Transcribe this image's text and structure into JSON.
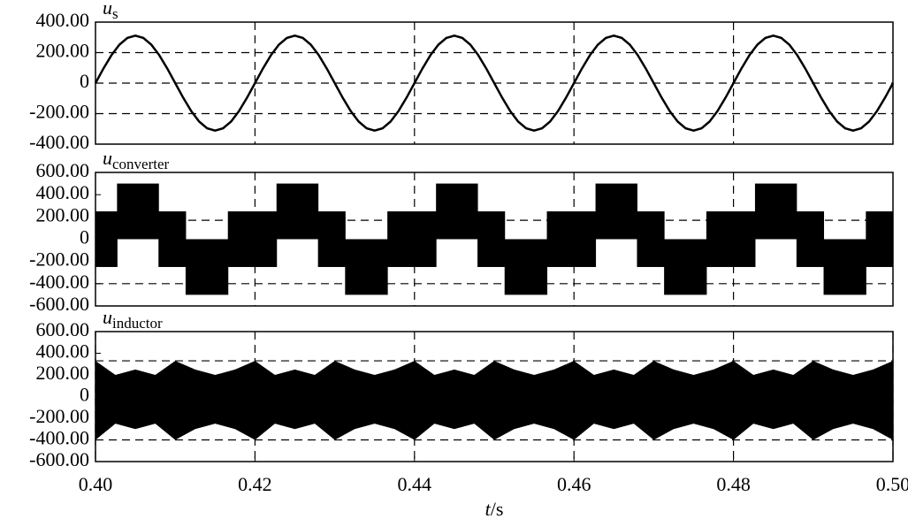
{
  "chart_data": [
    {
      "type": "line",
      "ylabel": "u",
      "ylabel_sub": "s",
      "color": "#000000",
      "x": [
        0.4,
        0.401,
        0.402,
        0.403,
        0.404,
        0.405,
        0.406,
        0.407,
        0.408,
        0.409,
        0.41,
        0.411,
        0.412,
        0.413,
        0.414,
        0.415,
        0.416,
        0.417,
        0.418,
        0.419,
        0.42,
        0.421,
        0.422,
        0.423,
        0.424,
        0.425,
        0.426,
        0.427,
        0.428,
        0.429,
        0.43,
        0.431,
        0.432,
        0.433,
        0.434,
        0.435,
        0.436,
        0.437,
        0.438,
        0.439,
        0.44,
        0.441,
        0.442,
        0.443,
        0.444,
        0.445,
        0.446,
        0.447,
        0.448,
        0.449,
        0.45,
        0.451,
        0.452,
        0.453,
        0.454,
        0.455,
        0.456,
        0.457,
        0.458,
        0.459,
        0.46,
        0.461,
        0.462,
        0.463,
        0.464,
        0.465,
        0.466,
        0.467,
        0.468,
        0.469,
        0.47,
        0.471,
        0.472,
        0.473,
        0.474,
        0.475,
        0.476,
        0.477,
        0.478,
        0.479,
        0.48,
        0.481,
        0.482,
        0.483,
        0.484,
        0.485,
        0.486,
        0.487,
        0.488,
        0.489,
        0.49,
        0.491,
        0.492,
        0.493,
        0.494,
        0.495,
        0.496,
        0.497,
        0.498,
        0.499,
        0.5
      ],
      "values": [
        0,
        96,
        183,
        252,
        296,
        311,
        296,
        252,
        183,
        96,
        0,
        -96,
        -183,
        -252,
        -296,
        -311,
        -296,
        -252,
        -183,
        -96,
        0,
        96,
        183,
        252,
        296,
        311,
        296,
        252,
        183,
        96,
        0,
        -96,
        -183,
        -252,
        -296,
        -311,
        -296,
        -252,
        -183,
        -96,
        0,
        96,
        183,
        252,
        296,
        311,
        296,
        252,
        183,
        96,
        0,
        -96,
        -183,
        -252,
        -296,
        -311,
        -296,
        -252,
        -183,
        -96,
        0,
        96,
        183,
        252,
        296,
        311,
        296,
        252,
        183,
        96,
        0,
        -96,
        -183,
        -252,
        -296,
        -311,
        -296,
        -252,
        -183,
        -96,
        0,
        96,
        183,
        252,
        296,
        311,
        296,
        252,
        183,
        96,
        0,
        -96,
        -183,
        -252,
        -296,
        -311,
        -296,
        -252,
        -183,
        -96,
        0
      ],
      "xlim": [
        0.4,
        0.5
      ],
      "xticks": [
        0.42,
        0.44,
        0.46,
        0.48
      ],
      "ylim": [
        -400,
        400
      ],
      "yticks": [
        {
          "value": 400,
          "label": "400.00"
        },
        {
          "value": 200,
          "label": "200.00"
        },
        0,
        {
          "value": -200,
          "label": "-200.00"
        },
        {
          "value": -400,
          "label": "-400.00"
        }
      ],
      "reference_lines": [
        200,
        0,
        -200
      ]
    },
    {
      "type": "step_band",
      "ylabel": "u",
      "ylabel_sub": "converter",
      "color": "#000000",
      "edges": [
        0.4,
        0.4027,
        0.4079,
        0.4113,
        0.4166,
        0.42,
        0.4227,
        0.4279,
        0.4313,
        0.4366,
        0.44,
        0.4427,
        0.4479,
        0.4513,
        0.4566,
        0.46,
        0.4627,
        0.4679,
        0.4713,
        0.4766,
        0.48,
        0.4827,
        0.4879,
        0.4913,
        0.4966,
        0.5
      ],
      "upper": [
        250,
        500,
        250,
        0,
        250,
        250,
        500,
        250,
        0,
        250,
        250,
        500,
        250,
        0,
        250,
        250,
        500,
        250,
        0,
        250,
        250,
        500,
        250,
        0,
        250
      ],
      "lower": [
        -250,
        0,
        -250,
        -500,
        -250,
        -250,
        0,
        -250,
        -500,
        -250,
        -250,
        0,
        -250,
        -500,
        -250,
        -250,
        0,
        -250,
        -500,
        -250,
        -250,
        0,
        -250,
        -500,
        -250
      ],
      "xlim": [
        0.4,
        0.5
      ],
      "xticks": [
        0.42,
        0.44,
        0.46,
        0.48
      ],
      "ylim": [
        -600,
        600
      ],
      "yticks": [
        {
          "value": 600,
          "label": "600.00"
        },
        {
          "value": 400,
          "label": "400.00"
        },
        {
          "value": 200,
          "label": "200.00"
        },
        0,
        {
          "value": -200,
          "label": "-200.00"
        },
        {
          "value": -400,
          "label": "-400.00"
        },
        {
          "value": -600,
          "label": "-600.00"
        }
      ],
      "reference_lines": [
        170,
        -400
      ]
    },
    {
      "type": "band",
      "ylabel": "u",
      "ylabel_sub": "inductor",
      "color": "#000000",
      "x": [
        0.4,
        0.4025,
        0.405,
        0.4075,
        0.41,
        0.4125,
        0.415,
        0.4175,
        0.42,
        0.4225,
        0.425,
        0.4275,
        0.43,
        0.4325,
        0.435,
        0.4375,
        0.44,
        0.4425,
        0.445,
        0.4475,
        0.45,
        0.4525,
        0.455,
        0.4575,
        0.46,
        0.4625,
        0.465,
        0.4675,
        0.47,
        0.4725,
        0.475,
        0.4775,
        0.48,
        0.4825,
        0.485,
        0.4875,
        0.49,
        0.4925,
        0.495,
        0.4975,
        0.5
      ],
      "upper": [
        330,
        200,
        250,
        200,
        330,
        250,
        200,
        250,
        330,
        200,
        250,
        200,
        330,
        250,
        200,
        250,
        330,
        200,
        250,
        200,
        330,
        250,
        200,
        250,
        330,
        200,
        250,
        200,
        330,
        250,
        200,
        250,
        330,
        200,
        250,
        200,
        330,
        250,
        200,
        250,
        330
      ],
      "lower": [
        -400,
        -250,
        -300,
        -250,
        -400,
        -300,
        -250,
        -300,
        -400,
        -250,
        -300,
        -250,
        -400,
        -300,
        -250,
        -300,
        -400,
        -250,
        -300,
        -250,
        -400,
        -300,
        -250,
        -300,
        -400,
        -250,
        -300,
        -250,
        -400,
        -300,
        -250,
        -300,
        -400,
        -250,
        -300,
        -250,
        -400,
        -300,
        -250,
        -300,
        -400
      ],
      "xlim": [
        0.4,
        0.5
      ],
      "xticks": [
        {
          "value": 0.4,
          "label": "0.40"
        },
        {
          "value": 0.42,
          "label": "0.42"
        },
        {
          "value": 0.44,
          "label": "0.44"
        },
        {
          "value": 0.46,
          "label": "0.46"
        },
        {
          "value": 0.48,
          "label": "0.48"
        },
        {
          "value": 0.5,
          "label": "0.50"
        }
      ],
      "xlabel": "t",
      "xlabel_unit": "/s",
      "ylim": [
        -600,
        600
      ],
      "yticks": [
        {
          "value": 600,
          "label": "600.00"
        },
        {
          "value": 400,
          "label": "400.00"
        },
        {
          "value": 200,
          "label": "200.00"
        },
        0,
        {
          "value": -200,
          "label": "-200.00"
        },
        {
          "value": -400,
          "label": "-400.00"
        },
        {
          "value": -600,
          "label": "-600.00"
        }
      ],
      "reference_lines": [
        330,
        -400
      ]
    }
  ]
}
